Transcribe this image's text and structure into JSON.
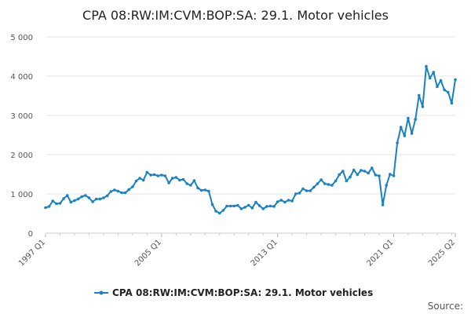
{
  "chart_data": {
    "type": "line",
    "title": "CPA 08:RW:IM:CVM:BOP:SA: 29.1. Motor vehicles",
    "xlabel": "",
    "ylabel": "",
    "ylim": [
      0,
      5000
    ],
    "y_ticks": [
      0,
      1000,
      2000,
      3000,
      4000,
      5000
    ],
    "y_tick_labels": [
      "0",
      "1 000",
      "2 000",
      "3 000",
      "4 000",
      "5 000"
    ],
    "x_tick_labels": [
      "1997 Q1",
      "2005 Q1",
      "2013 Q1",
      "2021 Q1",
      "2025 Q2"
    ],
    "grid": true,
    "legend": "bottom",
    "series_color": "#1a81c2",
    "source_label": "Source:",
    "series": [
      {
        "name": "CPA 08:RW:IM:CVM:BOP:SA: 29.1. Motor vehicles",
        "x_start": "1997 Q1",
        "frequency": "quarterly",
        "values": [
          650,
          680,
          820,
          750,
          760,
          880,
          960,
          790,
          830,
          870,
          930,
          960,
          900,
          800,
          870,
          870,
          900,
          950,
          1060,
          1100,
          1070,
          1030,
          1030,
          1110,
          1180,
          1330,
          1400,
          1350,
          1550,
          1480,
          1490,
          1460,
          1480,
          1460,
          1280,
          1400,
          1420,
          1350,
          1370,
          1260,
          1220,
          1340,
          1150,
          1090,
          1100,
          1070,
          730,
          560,
          510,
          580,
          690,
          690,
          690,
          710,
          620,
          660,
          710,
          640,
          790,
          700,
          620,
          680,
          690,
          680,
          800,
          840,
          790,
          840,
          820,
          1000,
          1020,
          1130,
          1080,
          1080,
          1170,
          1260,
          1360,
          1260,
          1240,
          1220,
          1330,
          1490,
          1580,
          1330,
          1430,
          1610,
          1490,
          1600,
          1580,
          1530,
          1660,
          1480,
          1460,
          720,
          1220,
          1500,
          1460,
          2300,
          2700,
          2480,
          2930,
          2540,
          2900,
          3510,
          3220,
          4250,
          3950,
          4100,
          3730,
          3890,
          3650,
          3590,
          3310,
          3910
        ]
      }
    ]
  }
}
